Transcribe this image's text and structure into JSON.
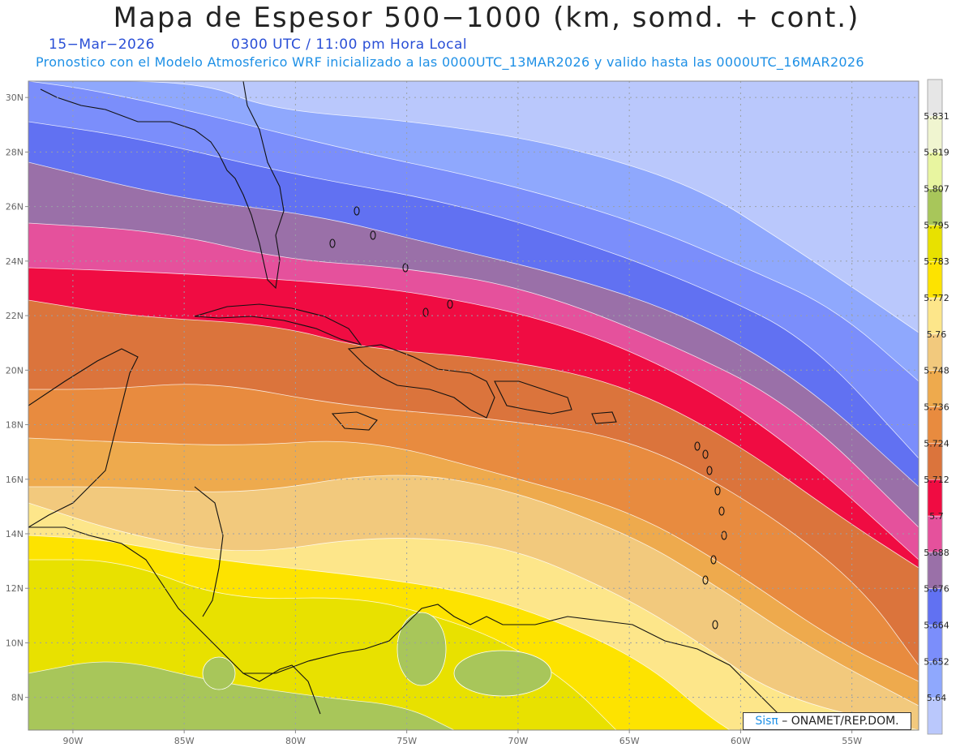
{
  "header": {
    "title": "Mapa de Espesor 500−1000 (km, somd. + cont.)",
    "date": "15−Mar−2026",
    "time": "0300 UTC / 11:00 pm Hora Local",
    "forecast": "Pronostico con el Modelo Atmosferico WRF inicializado a las 0000UTC_13MAR2026 y valido hasta las  0000UTC_16MAR2026"
  },
  "map": {
    "lon_range": [
      -92,
      -52
    ],
    "lat_range": [
      6.8,
      30.6
    ],
    "lat_ticks": [
      "30N",
      "28N",
      "26N",
      "24N",
      "22N",
      "20N",
      "18N",
      "16N",
      "14N",
      "12N",
      "10N",
      "8N"
    ],
    "lon_ticks": [
      "90W",
      "85W",
      "80W",
      "75W",
      "70W",
      "65W",
      "60W",
      "55W"
    ]
  },
  "legend": {
    "colors": [
      "#bac8fc",
      "#8fa8fd",
      "#7b8efb",
      "#6171f2",
      "#9a70a8",
      "#e5519c",
      "#f00c42",
      "#db743c",
      "#e88b3f",
      "#eeaa4d",
      "#f2c97d",
      "#fde68a",
      "#fde300",
      "#e8e100",
      "#a8c65a",
      "#e8f5a0",
      "#f0f5d0",
      "#e6e6e6"
    ],
    "labels": [
      "5.64",
      "5.652",
      "5.664",
      "5.676",
      "5.688",
      "5.7",
      "5.712",
      "5.724",
      "5.736",
      "5.748",
      "5.76",
      "5.772",
      "5.783",
      "5.795",
      "5.807",
      "5.819",
      "5.831"
    ]
  },
  "credit": {
    "sis": "Sisπ",
    "rest": " – ONAMET/REP.DOM."
  }
}
